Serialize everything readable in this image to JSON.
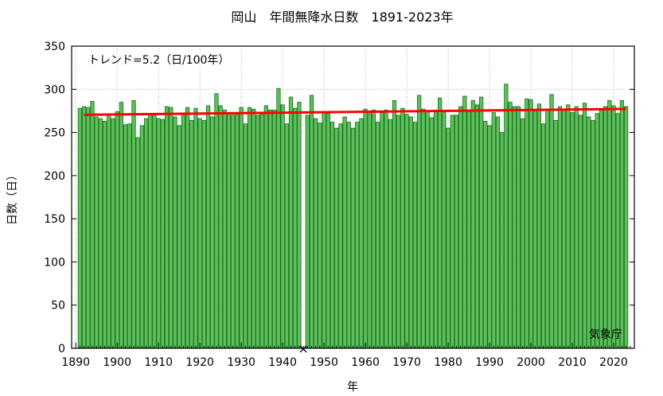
{
  "chart_data": {
    "type": "bar",
    "title": "岡山　年間無降水日数　1891-2023年",
    "xlabel": "年",
    "ylabel": "日数（日）",
    "annotation": "トレンド=5.2（日/100年）",
    "credit": "気象庁",
    "missing_marker": "×",
    "missing_year": 1945,
    "xlim": [
      1889,
      2025
    ],
    "ylim": [
      0,
      350
    ],
    "x_ticks": [
      1890,
      1900,
      1910,
      1920,
      1930,
      1940,
      1950,
      1960,
      1970,
      1980,
      1990,
      2000,
      2010,
      2020
    ],
    "y_ticks": [
      0,
      50,
      100,
      150,
      200,
      250,
      300,
      350
    ],
    "bar_color": "#5cc05c",
    "bar_edge_color": "#1a6e1a",
    "trend_color": "#ff0000",
    "grid": true,
    "start_year": 1891,
    "values": [
      278,
      280,
      279,
      286,
      268,
      266,
      263,
      271,
      266,
      274,
      285,
      259,
      260,
      287,
      244,
      258,
      266,
      270,
      272,
      266,
      265,
      280,
      279,
      268,
      258,
      271,
      279,
      264,
      278,
      266,
      264,
      281,
      268,
      295,
      281,
      276,
      272,
      270,
      271,
      279,
      260,
      279,
      277,
      270,
      271,
      281,
      276,
      276,
      301,
      282,
      260,
      291,
      278,
      285,
      0,
      270,
      293,
      266,
      261,
      273,
      272,
      262,
      255,
      260,
      268,
      262,
      255,
      262,
      266,
      277,
      272,
      276,
      262,
      273,
      276,
      265,
      287,
      270,
      278,
      271,
      268,
      262,
      293,
      277,
      275,
      267,
      276,
      290,
      273,
      255,
      270,
      270,
      280,
      292,
      276,
      287,
      282,
      291,
      263,
      258,
      273,
      268,
      250,
      306,
      285,
      280,
      280,
      266,
      289,
      288,
      275,
      283,
      260,
      276,
      294,
      264,
      280,
      277,
      282,
      273,
      280,
      270,
      284,
      268,
      264,
      272,
      276,
      280,
      287,
      281,
      272,
      287,
      280
    ],
    "trend": {
      "start": [
        1892,
        270.4
      ],
      "end": [
        2023,
        277.3
      ]
    }
  }
}
